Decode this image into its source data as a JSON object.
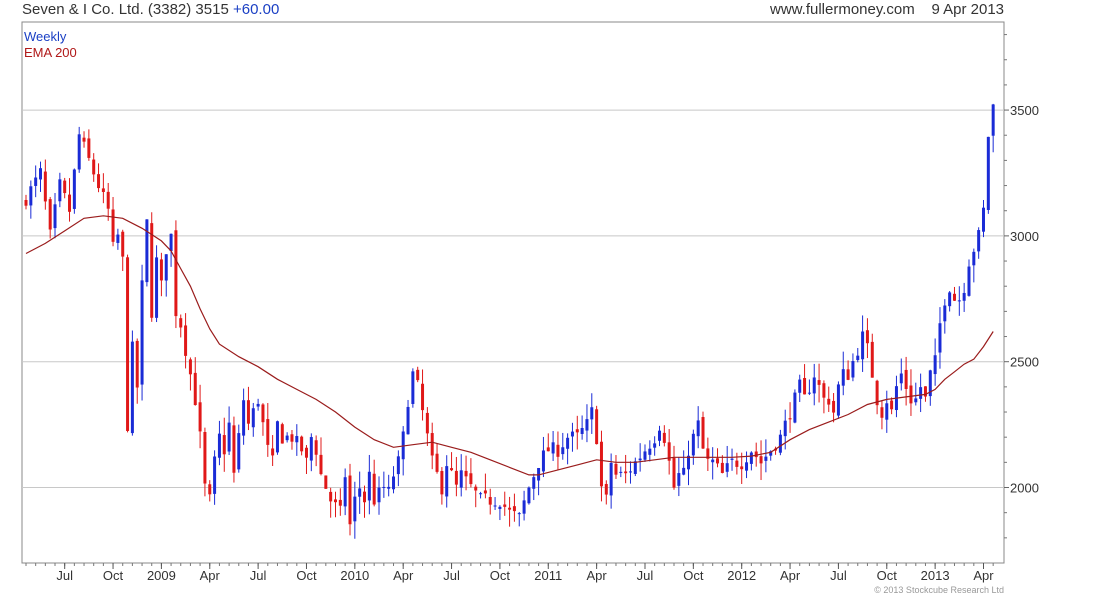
{
  "header": {
    "title": "Seven & I Co. Ltd. (3382) 3515",
    "change": "+60.00",
    "site": "www.fullermoney.com",
    "date": "9 Apr 2013"
  },
  "footer": {
    "copyright": "© 2013 Stockcube Research Ltd"
  },
  "colors": {
    "up": "#1a2bd6",
    "down": "#e01818",
    "ema": "#9a1c1c",
    "grid": "#c8c8c8"
  },
  "chart_data": {
    "type": "candlestick",
    "legend": [
      "Weekly",
      "EMA 200"
    ],
    "ylim": [
      1700,
      3850
    ],
    "yticks": [
      2000,
      2500,
      3000,
      3500
    ],
    "xlim": [
      0,
      201
    ],
    "xticks": [
      {
        "label": "Jul",
        "x": 8
      },
      {
        "label": "Oct",
        "x": 18
      },
      {
        "label": "2009",
        "x": 28
      },
      {
        "label": "Apr",
        "x": 38
      },
      {
        "label": "Jul",
        "x": 48
      },
      {
        "label": "Oct",
        "x": 58
      },
      {
        "label": "2010",
        "x": 68
      },
      {
        "label": "Apr",
        "x": 78
      },
      {
        "label": "Jul",
        "x": 88
      },
      {
        "label": "Oct",
        "x": 98
      },
      {
        "label": "2011",
        "x": 108
      },
      {
        "label": "Apr",
        "x": 118
      },
      {
        "label": "Jul",
        "x": 128
      },
      {
        "label": "Oct",
        "x": 138
      },
      {
        "label": "2012",
        "x": 148
      },
      {
        "label": "Apr",
        "x": 158
      },
      {
        "label": "Jul",
        "x": 168
      },
      {
        "label": "Oct",
        "x": 178
      },
      {
        "label": "2013",
        "x": 188
      },
      {
        "label": "Apr",
        "x": 198
      }
    ],
    "close_path": [
      [
        0,
        3150
      ],
      [
        3,
        3250
      ],
      [
        5,
        3000
      ],
      [
        7,
        3200
      ],
      [
        9,
        3100
      ],
      [
        11,
        3400
      ],
      [
        13,
        3300
      ],
      [
        15,
        3200
      ],
      [
        17,
        3100
      ],
      [
        18,
        2950
      ],
      [
        19,
        3000
      ],
      [
        20,
        2900
      ],
      [
        21,
        2250
      ],
      [
        22,
        2550
      ],
      [
        23,
        2400
      ],
      [
        24,
        2800
      ],
      [
        25,
        3050
      ],
      [
        26,
        2700
      ],
      [
        27,
        2900
      ],
      [
        28,
        2800
      ],
      [
        29,
        2950
      ],
      [
        30,
        3000
      ],
      [
        31,
        2700
      ],
      [
        32,
        2650
      ],
      [
        33,
        2550
      ],
      [
        34,
        2450
      ],
      [
        35,
        2350
      ],
      [
        36,
        2200
      ],
      [
        37,
        2000
      ],
      [
        38,
        1950
      ],
      [
        39,
        2100
      ],
      [
        40,
        2200
      ],
      [
        41,
        2150
      ],
      [
        42,
        2250
      ],
      [
        43,
        2050
      ],
      [
        44,
        2200
      ],
      [
        45,
        2350
      ],
      [
        46,
        2250
      ],
      [
        47,
        2300
      ],
      [
        48,
        2350
      ],
      [
        49,
        2250
      ],
      [
        50,
        2150
      ],
      [
        51,
        2100
      ],
      [
        52,
        2250
      ],
      [
        53,
        2200
      ],
      [
        55,
        2200
      ],
      [
        57,
        2150
      ],
      [
        58,
        2100
      ],
      [
        59,
        2200
      ],
      [
        60,
        2150
      ],
      [
        61,
        2050
      ],
      [
        63,
        1950
      ],
      [
        65,
        1900
      ],
      [
        66,
        2050
      ],
      [
        67,
        1850
      ],
      [
        68,
        1950
      ],
      [
        69,
        2000
      ],
      [
        70,
        1950
      ],
      [
        71,
        2050
      ],
      [
        72,
        1950
      ],
      [
        74,
        2000
      ],
      [
        75,
        1980
      ],
      [
        76,
        2050
      ],
      [
        77,
        2100
      ],
      [
        78,
        2200
      ],
      [
        79,
        2350
      ],
      [
        80,
        2450
      ],
      [
        81,
        2400
      ],
      [
        82,
        2300
      ],
      [
        83,
        2200
      ],
      [
        84,
        2100
      ],
      [
        85,
        2050
      ],
      [
        86,
        2000
      ],
      [
        87,
        2100
      ],
      [
        88,
        2050
      ],
      [
        89,
        2000
      ],
      [
        90,
        2050
      ],
      [
        92,
        2000
      ],
      [
        94,
        1950
      ],
      [
        96,
        1950
      ],
      [
        98,
        1950
      ],
      [
        100,
        1900
      ],
      [
        102,
        1880
      ],
      [
        104,
        2000
      ],
      [
        106,
        2100
      ],
      [
        108,
        2150
      ],
      [
        110,
        2150
      ],
      [
        112,
        2200
      ],
      [
        114,
        2200
      ],
      [
        116,
        2250
      ],
      [
        117,
        2300
      ],
      [
        118,
        2200
      ],
      [
        119,
        2000
      ],
      [
        120,
        1950
      ],
      [
        121,
        2100
      ],
      [
        122,
        2050
      ],
      [
        124,
        2050
      ],
      [
        126,
        2100
      ],
      [
        128,
        2150
      ],
      [
        130,
        2200
      ],
      [
        131,
        2250
      ],
      [
        132,
        2200
      ],
      [
        133,
        2100
      ],
      [
        134,
        2000
      ],
      [
        135,
        2050
      ],
      [
        136,
        2050
      ],
      [
        137,
        2150
      ],
      [
        138,
        2200
      ],
      [
        139,
        2250
      ],
      [
        140,
        2150
      ],
      [
        141,
        2100
      ],
      [
        142,
        2100
      ],
      [
        144,
        2050
      ],
      [
        146,
        2100
      ],
      [
        148,
        2100
      ],
      [
        150,
        2150
      ],
      [
        152,
        2100
      ],
      [
        154,
        2150
      ],
      [
        156,
        2200
      ],
      [
        157,
        2250
      ],
      [
        158,
        2300
      ],
      [
        159,
        2350
      ],
      [
        160,
        2400
      ],
      [
        161,
        2350
      ],
      [
        162,
        2400
      ],
      [
        163,
        2450
      ],
      [
        164,
        2400
      ],
      [
        165,
        2350
      ],
      [
        166,
        2350
      ],
      [
        167,
        2300
      ],
      [
        168,
        2400
      ],
      [
        169,
        2450
      ],
      [
        170,
        2450
      ],
      [
        171,
        2500
      ],
      [
        172,
        2550
      ],
      [
        173,
        2600
      ],
      [
        174,
        2550
      ],
      [
        175,
        2450
      ],
      [
        176,
        2350
      ],
      [
        177,
        2300
      ],
      [
        178,
        2350
      ],
      [
        179,
        2300
      ],
      [
        180,
        2400
      ],
      [
        181,
        2450
      ],
      [
        182,
        2400
      ],
      [
        183,
        2350
      ],
      [
        184,
        2350
      ],
      [
        185,
        2400
      ],
      [
        186,
        2350
      ],
      [
        187,
        2450
      ],
      [
        188,
        2500
      ],
      [
        189,
        2650
      ],
      [
        190,
        2750
      ],
      [
        191,
        2800
      ],
      [
        192,
        2750
      ],
      [
        193,
        2750
      ],
      [
        194,
        2800
      ],
      [
        195,
        2900
      ],
      [
        196,
        2950
      ],
      [
        197,
        3000
      ],
      [
        198,
        3100
      ],
      [
        199,
        3400
      ],
      [
        200,
        3515
      ]
    ],
    "ema_path": [
      [
        0,
        2930
      ],
      [
        4,
        2970
      ],
      [
        8,
        3020
      ],
      [
        12,
        3070
      ],
      [
        16,
        3080
      ],
      [
        20,
        3070
      ],
      [
        24,
        3030
      ],
      [
        28,
        2980
      ],
      [
        30,
        2940
      ],
      [
        32,
        2870
      ],
      [
        34,
        2800
      ],
      [
        36,
        2710
      ],
      [
        38,
        2630
      ],
      [
        40,
        2570
      ],
      [
        44,
        2520
      ],
      [
        48,
        2480
      ],
      [
        52,
        2430
      ],
      [
        56,
        2390
      ],
      [
        60,
        2350
      ],
      [
        64,
        2300
      ],
      [
        68,
        2240
      ],
      [
        72,
        2190
      ],
      [
        76,
        2160
      ],
      [
        80,
        2170
      ],
      [
        84,
        2180
      ],
      [
        88,
        2160
      ],
      [
        92,
        2140
      ],
      [
        96,
        2110
      ],
      [
        100,
        2080
      ],
      [
        104,
        2050
      ],
      [
        106,
        2050
      ],
      [
        110,
        2070
      ],
      [
        114,
        2090
      ],
      [
        118,
        2110
      ],
      [
        122,
        2100
      ],
      [
        126,
        2100
      ],
      [
        130,
        2110
      ],
      [
        134,
        2120
      ],
      [
        138,
        2120
      ],
      [
        142,
        2120
      ],
      [
        146,
        2120
      ],
      [
        150,
        2125
      ],
      [
        154,
        2140
      ],
      [
        158,
        2190
      ],
      [
        162,
        2230
      ],
      [
        166,
        2260
      ],
      [
        170,
        2290
      ],
      [
        174,
        2330
      ],
      [
        178,
        2350
      ],
      [
        182,
        2360
      ],
      [
        186,
        2370
      ],
      [
        188,
        2390
      ],
      [
        190,
        2430
      ],
      [
        192,
        2460
      ],
      [
        194,
        2490
      ],
      [
        196,
        2510
      ],
      [
        198,
        2560
      ],
      [
        200,
        2620
      ]
    ]
  }
}
